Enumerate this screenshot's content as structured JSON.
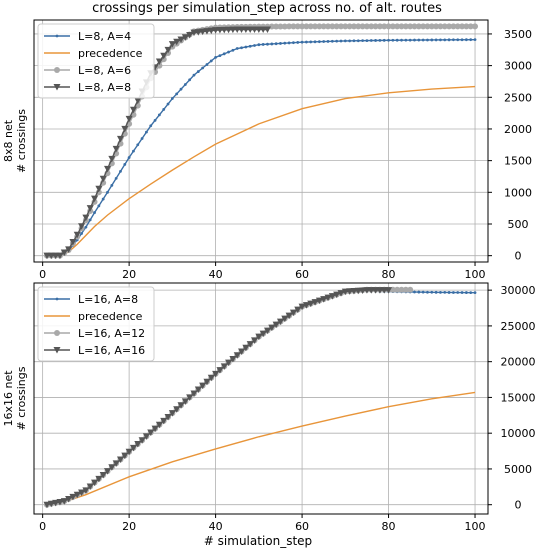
{
  "figure": {
    "title": "crossings per simulation_step across no. of alt. routes",
    "xlabel": "# simulation_step"
  },
  "colors": {
    "blue": "#3a6ea5",
    "orange": "#e8953a",
    "light_gray": "#a9a9a9",
    "dark_gray": "#555555",
    "grid": "#b0b0b0"
  },
  "chart_data": [
    {
      "type": "line",
      "ylabel_lines": [
        "8x8 net",
        "# crossings"
      ],
      "xlim": [
        -2,
        103
      ],
      "ylim": [
        -100,
        3720
      ],
      "x_ticks": [
        0,
        20,
        40,
        60,
        80,
        100
      ],
      "y_ticks": [
        0,
        500,
        1000,
        1500,
        2000,
        2500,
        3000,
        3500
      ],
      "y_axis_side": "right",
      "grid": true,
      "legend_position": "top-left",
      "series": [
        {
          "name": "L=8, A=4",
          "color_key": "blue",
          "marker": "dot",
          "x": [
            1,
            4,
            6,
            8,
            10,
            12,
            15,
            20,
            25,
            30,
            35,
            40,
            45,
            50,
            60,
            70,
            80,
            90,
            100
          ],
          "y": [
            0,
            0,
            80,
            250,
            450,
            680,
            1000,
            1550,
            2050,
            2480,
            2850,
            3130,
            3270,
            3330,
            3370,
            3390,
            3400,
            3405,
            3410
          ]
        },
        {
          "name": "precedence",
          "color_key": "orange",
          "marker": "none",
          "x": [
            1,
            4,
            6,
            8,
            10,
            12,
            15,
            20,
            25,
            30,
            35,
            40,
            50,
            60,
            70,
            80,
            90,
            100
          ],
          "y": [
            0,
            0,
            60,
            180,
            320,
            460,
            640,
            900,
            1130,
            1350,
            1560,
            1760,
            2080,
            2320,
            2480,
            2570,
            2630,
            2670
          ]
        },
        {
          "name": "L=8, A=6",
          "color_key": "light_gray",
          "marker": "circle",
          "x": [
            1,
            4,
            6,
            8,
            10,
            12,
            15,
            20,
            25,
            30,
            35,
            40,
            45,
            50,
            60,
            70,
            80,
            90,
            100
          ],
          "y": [
            0,
            0,
            90,
            300,
            560,
            850,
            1300,
            2080,
            2800,
            3300,
            3540,
            3600,
            3610,
            3615,
            3620,
            3620,
            3620,
            3620,
            3620
          ]
        },
        {
          "name": "L=8, A=8",
          "color_key": "dark_gray",
          "marker": "triangle-down",
          "x": [
            1,
            4,
            6,
            8,
            10,
            12,
            15,
            20,
            25,
            30,
            35,
            40,
            45,
            50,
            52
          ],
          "y": [
            0,
            0,
            100,
            330,
            600,
            900,
            1370,
            2160,
            2880,
            3340,
            3520,
            3560,
            3570,
            3570,
            3570
          ]
        }
      ]
    },
    {
      "type": "line",
      "ylabel_lines": [
        "16x16 net",
        "# crossings"
      ],
      "xlim": [
        -2,
        103
      ],
      "ylim": [
        -1300,
        31000
      ],
      "x_ticks": [
        0,
        20,
        40,
        60,
        80,
        100
      ],
      "y_ticks": [
        0,
        5000,
        10000,
        15000,
        20000,
        25000,
        30000
      ],
      "y_axis_side": "right",
      "grid": true,
      "legend_position": "top-left",
      "series": [
        {
          "name": "L=16, A=8",
          "color_key": "blue",
          "marker": "dot",
          "x": [
            1,
            5,
            10,
            15,
            20,
            30,
            40,
            50,
            60,
            70,
            75,
            80,
            90,
            100
          ],
          "y": [
            0,
            500,
            2000,
            4700,
            7400,
            12800,
            18300,
            23500,
            27800,
            29700,
            29850,
            29800,
            29700,
            29650
          ]
        },
        {
          "name": "precedence",
          "color_key": "orange",
          "marker": "none",
          "x": [
            1,
            5,
            10,
            20,
            30,
            40,
            50,
            60,
            70,
            80,
            90,
            100
          ],
          "y": [
            0,
            400,
            1400,
            3900,
            6000,
            7800,
            9500,
            11000,
            12400,
            13700,
            14800,
            15700
          ]
        },
        {
          "name": "L=16, A=12",
          "color_key": "light_gray",
          "marker": "circle",
          "x": [
            1,
            5,
            10,
            15,
            20,
            30,
            40,
            50,
            60,
            70,
            75,
            80,
            85
          ],
          "y": [
            0,
            500,
            2000,
            4700,
            7400,
            12800,
            18300,
            23500,
            27700,
            29800,
            30050,
            30050,
            30050
          ]
        },
        {
          "name": "L=16, A=16",
          "color_key": "dark_gray",
          "marker": "triangle-down",
          "x": [
            1,
            5,
            10,
            15,
            20,
            30,
            40,
            50,
            60,
            70,
            75,
            80
          ],
          "y": [
            0,
            500,
            2000,
            4700,
            7400,
            12800,
            18300,
            23500,
            27700,
            29800,
            30000,
            30000
          ]
        }
      ]
    }
  ]
}
